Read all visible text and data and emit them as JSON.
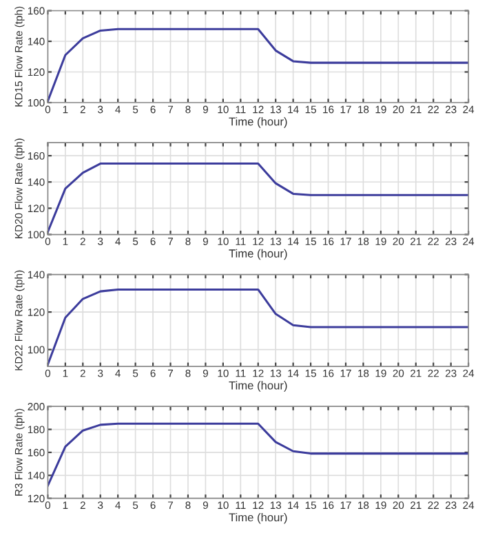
{
  "chart_data": [
    {
      "type": "line",
      "xlabel": "Time (hour)",
      "ylabel": "KD15 Flow Rate (tph)",
      "x": [
        0,
        1,
        2,
        3,
        4,
        5,
        6,
        7,
        8,
        9,
        10,
        11,
        12,
        13,
        14,
        15,
        16,
        17,
        18,
        19,
        20,
        21,
        22,
        23,
        24
      ],
      "series": [
        {
          "color": "#3c3c9c",
          "values": [
            101,
            131,
            142,
            147,
            148,
            148,
            148,
            148,
            148,
            148,
            148,
            148,
            148,
            134,
            127,
            126,
            126,
            126,
            126,
            126,
            126,
            126,
            126,
            126,
            126
          ]
        }
      ],
      "xlim": [
        0,
        24
      ],
      "ylim": [
        100,
        160
      ],
      "xticks": [
        0,
        1,
        2,
        3,
        4,
        5,
        6,
        7,
        8,
        9,
        10,
        11,
        12,
        13,
        14,
        15,
        16,
        17,
        18,
        19,
        20,
        21,
        22,
        23,
        24
      ],
      "yticks": [
        100,
        120,
        140,
        160
      ],
      "grid": true,
      "line_style": "solid"
    },
    {
      "type": "line",
      "xlabel": "Time (hour)",
      "ylabel": "KD20 Flow Rate (tph)",
      "x": [
        0,
        1,
        2,
        3,
        4,
        5,
        6,
        7,
        8,
        9,
        10,
        11,
        12,
        13,
        14,
        15,
        16,
        17,
        18,
        19,
        20,
        21,
        22,
        23,
        24
      ],
      "series": [
        {
          "color": "#3c3c9c",
          "values": [
            102,
            135,
            147,
            154,
            154,
            154,
            154,
            154,
            154,
            154,
            154,
            154,
            154,
            139,
            131,
            130,
            130,
            130,
            130,
            130,
            130,
            130,
            130,
            130,
            130
          ]
        }
      ],
      "xlim": [
        0,
        24
      ],
      "ylim": [
        100,
        170
      ],
      "xticks": [
        0,
        1,
        2,
        3,
        4,
        5,
        6,
        7,
        8,
        9,
        10,
        11,
        12,
        13,
        14,
        15,
        16,
        17,
        18,
        19,
        20,
        21,
        22,
        23,
        24
      ],
      "yticks": [
        100,
        120,
        140,
        160
      ],
      "grid": true,
      "line_style": "solid"
    },
    {
      "type": "line",
      "xlabel": "Time (hour)",
      "ylabel": "KD22 Flow Rate (tph)",
      "x": [
        0,
        1,
        2,
        3,
        4,
        5,
        6,
        7,
        8,
        9,
        10,
        11,
        12,
        13,
        14,
        15,
        16,
        17,
        18,
        19,
        20,
        21,
        22,
        23,
        24
      ],
      "series": [
        {
          "color": "#3c3c9c",
          "values": [
            92,
            117,
            127,
            131,
            132,
            132,
            132,
            132,
            132,
            132,
            132,
            132,
            132,
            119,
            113,
            112,
            112,
            112,
            112,
            112,
            112,
            112,
            112,
            112,
            112
          ]
        }
      ],
      "xlim": [
        0,
        24
      ],
      "ylim": [
        91,
        140
      ],
      "xticks": [
        0,
        1,
        2,
        3,
        4,
        5,
        6,
        7,
        8,
        9,
        10,
        11,
        12,
        13,
        14,
        15,
        16,
        17,
        18,
        19,
        20,
        21,
        22,
        23,
        24
      ],
      "yticks": [
        100,
        120,
        140
      ],
      "grid": true,
      "line_style": "solid"
    },
    {
      "type": "line",
      "xlabel": "Time (hour)",
      "ylabel": "R3 Flow Rate (tph)",
      "x": [
        0,
        1,
        2,
        3,
        4,
        5,
        6,
        7,
        8,
        9,
        10,
        11,
        12,
        13,
        14,
        15,
        16,
        17,
        18,
        19,
        20,
        21,
        22,
        23,
        24
      ],
      "series": [
        {
          "color": "#3c3c9c",
          "values": [
            131,
            165,
            179,
            184,
            185,
            185,
            185,
            185,
            185,
            185,
            185,
            185,
            185,
            169,
            161,
            159,
            159,
            159,
            159,
            159,
            159,
            159,
            159,
            159,
            159
          ]
        }
      ],
      "xlim": [
        0,
        24
      ],
      "ylim": [
        120,
        200
      ],
      "xticks": [
        0,
        1,
        2,
        3,
        4,
        5,
        6,
        7,
        8,
        9,
        10,
        11,
        12,
        13,
        14,
        15,
        16,
        17,
        18,
        19,
        20,
        21,
        22,
        23,
        24
      ],
      "yticks": [
        120,
        140,
        160,
        180,
        200
      ],
      "grid": true,
      "line_style": "solid"
    }
  ]
}
